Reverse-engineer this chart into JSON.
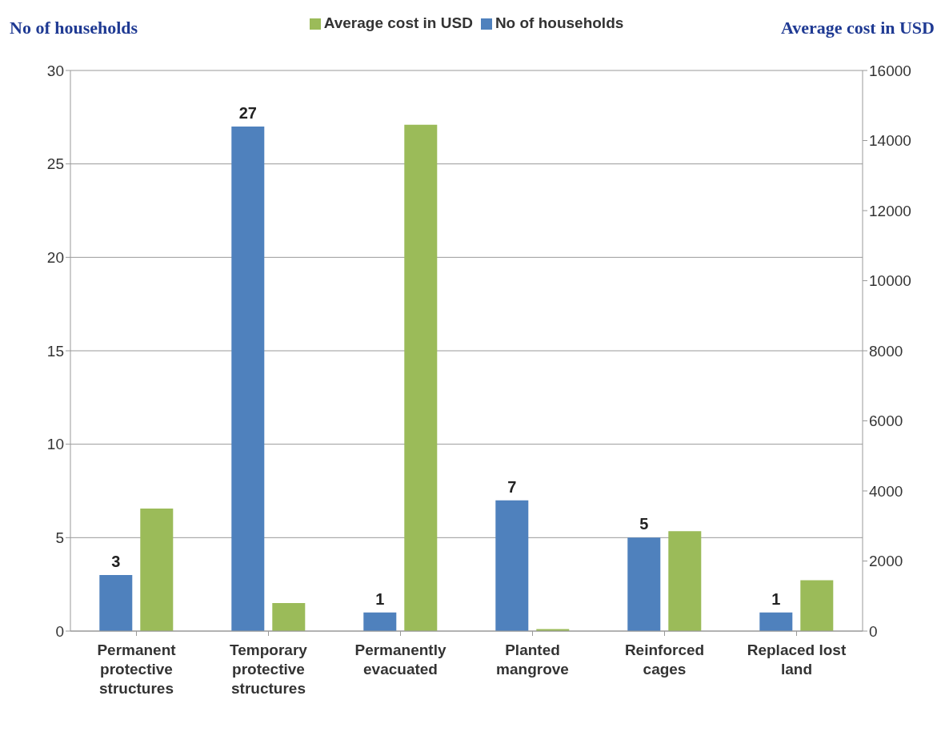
{
  "chart_data": {
    "type": "bar",
    "ylabel": "No of households",
    "y2label": "Average cost in USD",
    "categories": [
      "Permanent protective structures",
      "Temporary protective structures",
      "Permanently evacuated",
      "Planted mangrove",
      "Reinforced cages",
      "Replaced lost land"
    ],
    "series": [
      {
        "name": "No of households",
        "color": "#4f81bd",
        "values": [
          3,
          27,
          1,
          7,
          5,
          1
        ],
        "value_labels": [
          "3",
          "27",
          "1",
          "7",
          "5",
          "1"
        ]
      },
      {
        "name": "Average cost in USD",
        "color": "#9bbb59",
        "axis": "y2",
        "values": [
          3500,
          800,
          14450,
          60,
          2850,
          1450
        ]
      }
    ],
    "ylim": [
      0,
      30
    ],
    "yticks": [
      0,
      5,
      10,
      15,
      20,
      25,
      30
    ],
    "y2lim": [
      0,
      16000
    ],
    "y2ticks": [
      0,
      2000,
      4000,
      6000,
      8000,
      10000,
      12000,
      14000,
      16000
    ],
    "grid": "y",
    "legend": "top"
  }
}
